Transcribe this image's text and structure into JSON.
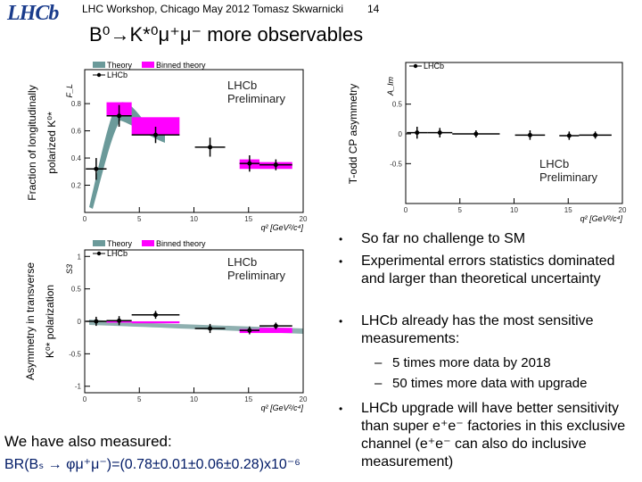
{
  "header": {
    "logo": "LHCb",
    "footer_text": "LHC Workshop, Chicago May 2012 Tomasz Skwarnicki",
    "page": "14"
  },
  "title": "B⁰→K*⁰μ⁺μ⁻ more observables",
  "plots": [
    {
      "y_label": [
        "Fraction of longitudinally",
        "polarized K⁰*"
      ],
      "y_symbol": "F_L",
      "x_label": "q² [GeV²/c⁴]",
      "legend": [
        "Theory",
        "Binned theory",
        "LHCb"
      ],
      "watermark": [
        "LHCb",
        "Preliminary"
      ],
      "xlim": [
        0,
        20
      ],
      "xticks": [
        0,
        5,
        10,
        15,
        20
      ],
      "ylim": [
        0,
        1.05
      ],
      "yticks": [
        0.2,
        0.4,
        0.6,
        0.8
      ],
      "bins": [
        [
          0.1,
          2
        ],
        [
          2,
          4.3
        ],
        [
          4.3,
          8.68
        ],
        [
          10.09,
          12.86
        ],
        [
          14.18,
          16
        ],
        [
          16,
          19
        ]
      ],
      "values": [
        0.32,
        0.71,
        0.57,
        0.48,
        0.36,
        0.35
      ],
      "errors": [
        0.08,
        0.08,
        0.06,
        0.07,
        0.06,
        0.04
      ],
      "binned_theory": [
        null,
        [
          0.71,
          0.81
        ],
        [
          0.57,
          0.7
        ],
        null,
        [
          0.32,
          0.39
        ],
        [
          0.32,
          0.37
        ]
      ]
    },
    {
      "y_label": [
        "T-odd CP asymmetry"
      ],
      "y_symbol": "A_Im",
      "x_label": "q² [GeV²/c⁴]",
      "legend": [
        "LHCb"
      ],
      "watermark": [
        "LHCb",
        "Preliminary"
      ],
      "xlim": [
        0,
        20
      ],
      "xticks": [
        0,
        5,
        10,
        15,
        20
      ],
      "ylim": [
        -1.17,
        1.2
      ],
      "yticks": [
        0.5,
        0,
        -0.5
      ],
      "bins": [
        [
          0.1,
          2
        ],
        [
          2,
          4.3
        ],
        [
          4.3,
          8.68
        ],
        [
          10.09,
          12.86
        ],
        [
          14.18,
          16
        ],
        [
          16,
          19
        ]
      ],
      "values": [
        0.02,
        0.02,
        0,
        -0.02,
        -0.03,
        -0.02
      ],
      "errors": [
        0.1,
        0.08,
        0.06,
        0.08,
        0.07,
        0.06
      ],
      "binned_theory": [
        null,
        null,
        null,
        null,
        null,
        null
      ]
    },
    {
      "y_label": [
        "Asymmetry in transverse",
        "K⁰* polarization"
      ],
      "y_symbol": "S3",
      "x_label": "q² [GeV²/c⁴]",
      "legend": [
        "Theory",
        "Binned theory",
        "LHCb"
      ],
      "watermark": [
        "LHCb",
        "Preliminary"
      ],
      "xlim": [
        0,
        20
      ],
      "xticks": [
        0,
        5,
        10,
        15,
        20
      ],
      "ylim": [
        -1.1,
        1.1
      ],
      "yticks": [
        1,
        0.5,
        0,
        -0.5,
        -1
      ],
      "bins": [
        [
          0.1,
          2
        ],
        [
          2,
          4.3
        ],
        [
          4.3,
          8.68
        ],
        [
          10.09,
          12.86
        ],
        [
          14.18,
          16
        ],
        [
          16,
          19
        ]
      ],
      "values": [
        0,
        0.01,
        0.1,
        -0.11,
        -0.14,
        -0.07
      ],
      "errors": [
        0.07,
        0.07,
        0.06,
        0.07,
        0.06,
        0.05
      ],
      "binned_theory": [
        null,
        [
          -0.02,
          0.01
        ],
        [
          -0.03,
          0
        ],
        null,
        [
          -0.18,
          -0.12
        ],
        [
          -0.18,
          -0.1
        ]
      ]
    }
  ],
  "bullets": [
    "So far no challenge to SM",
    "Experimental errors statistics dominated and larger than theoretical uncertainty",
    "LHCb already has the most sensitive measurements:"
  ],
  "sub_bullets": [
    "5 times more data by 2018",
    "50 times more data with upgrade"
  ],
  "last_bullet": "LHCb upgrade will have better sensitivity than super e⁺e⁻ factories in this exclusive channel (e⁺e⁻ can also do inclusive measurement)",
  "measured": {
    "intro": "We have also measured:",
    "formula": "BR(Bₛ → φμ⁺μ⁻)=(0.78±0.01±0.06±0.28)x10⁻⁶"
  }
}
